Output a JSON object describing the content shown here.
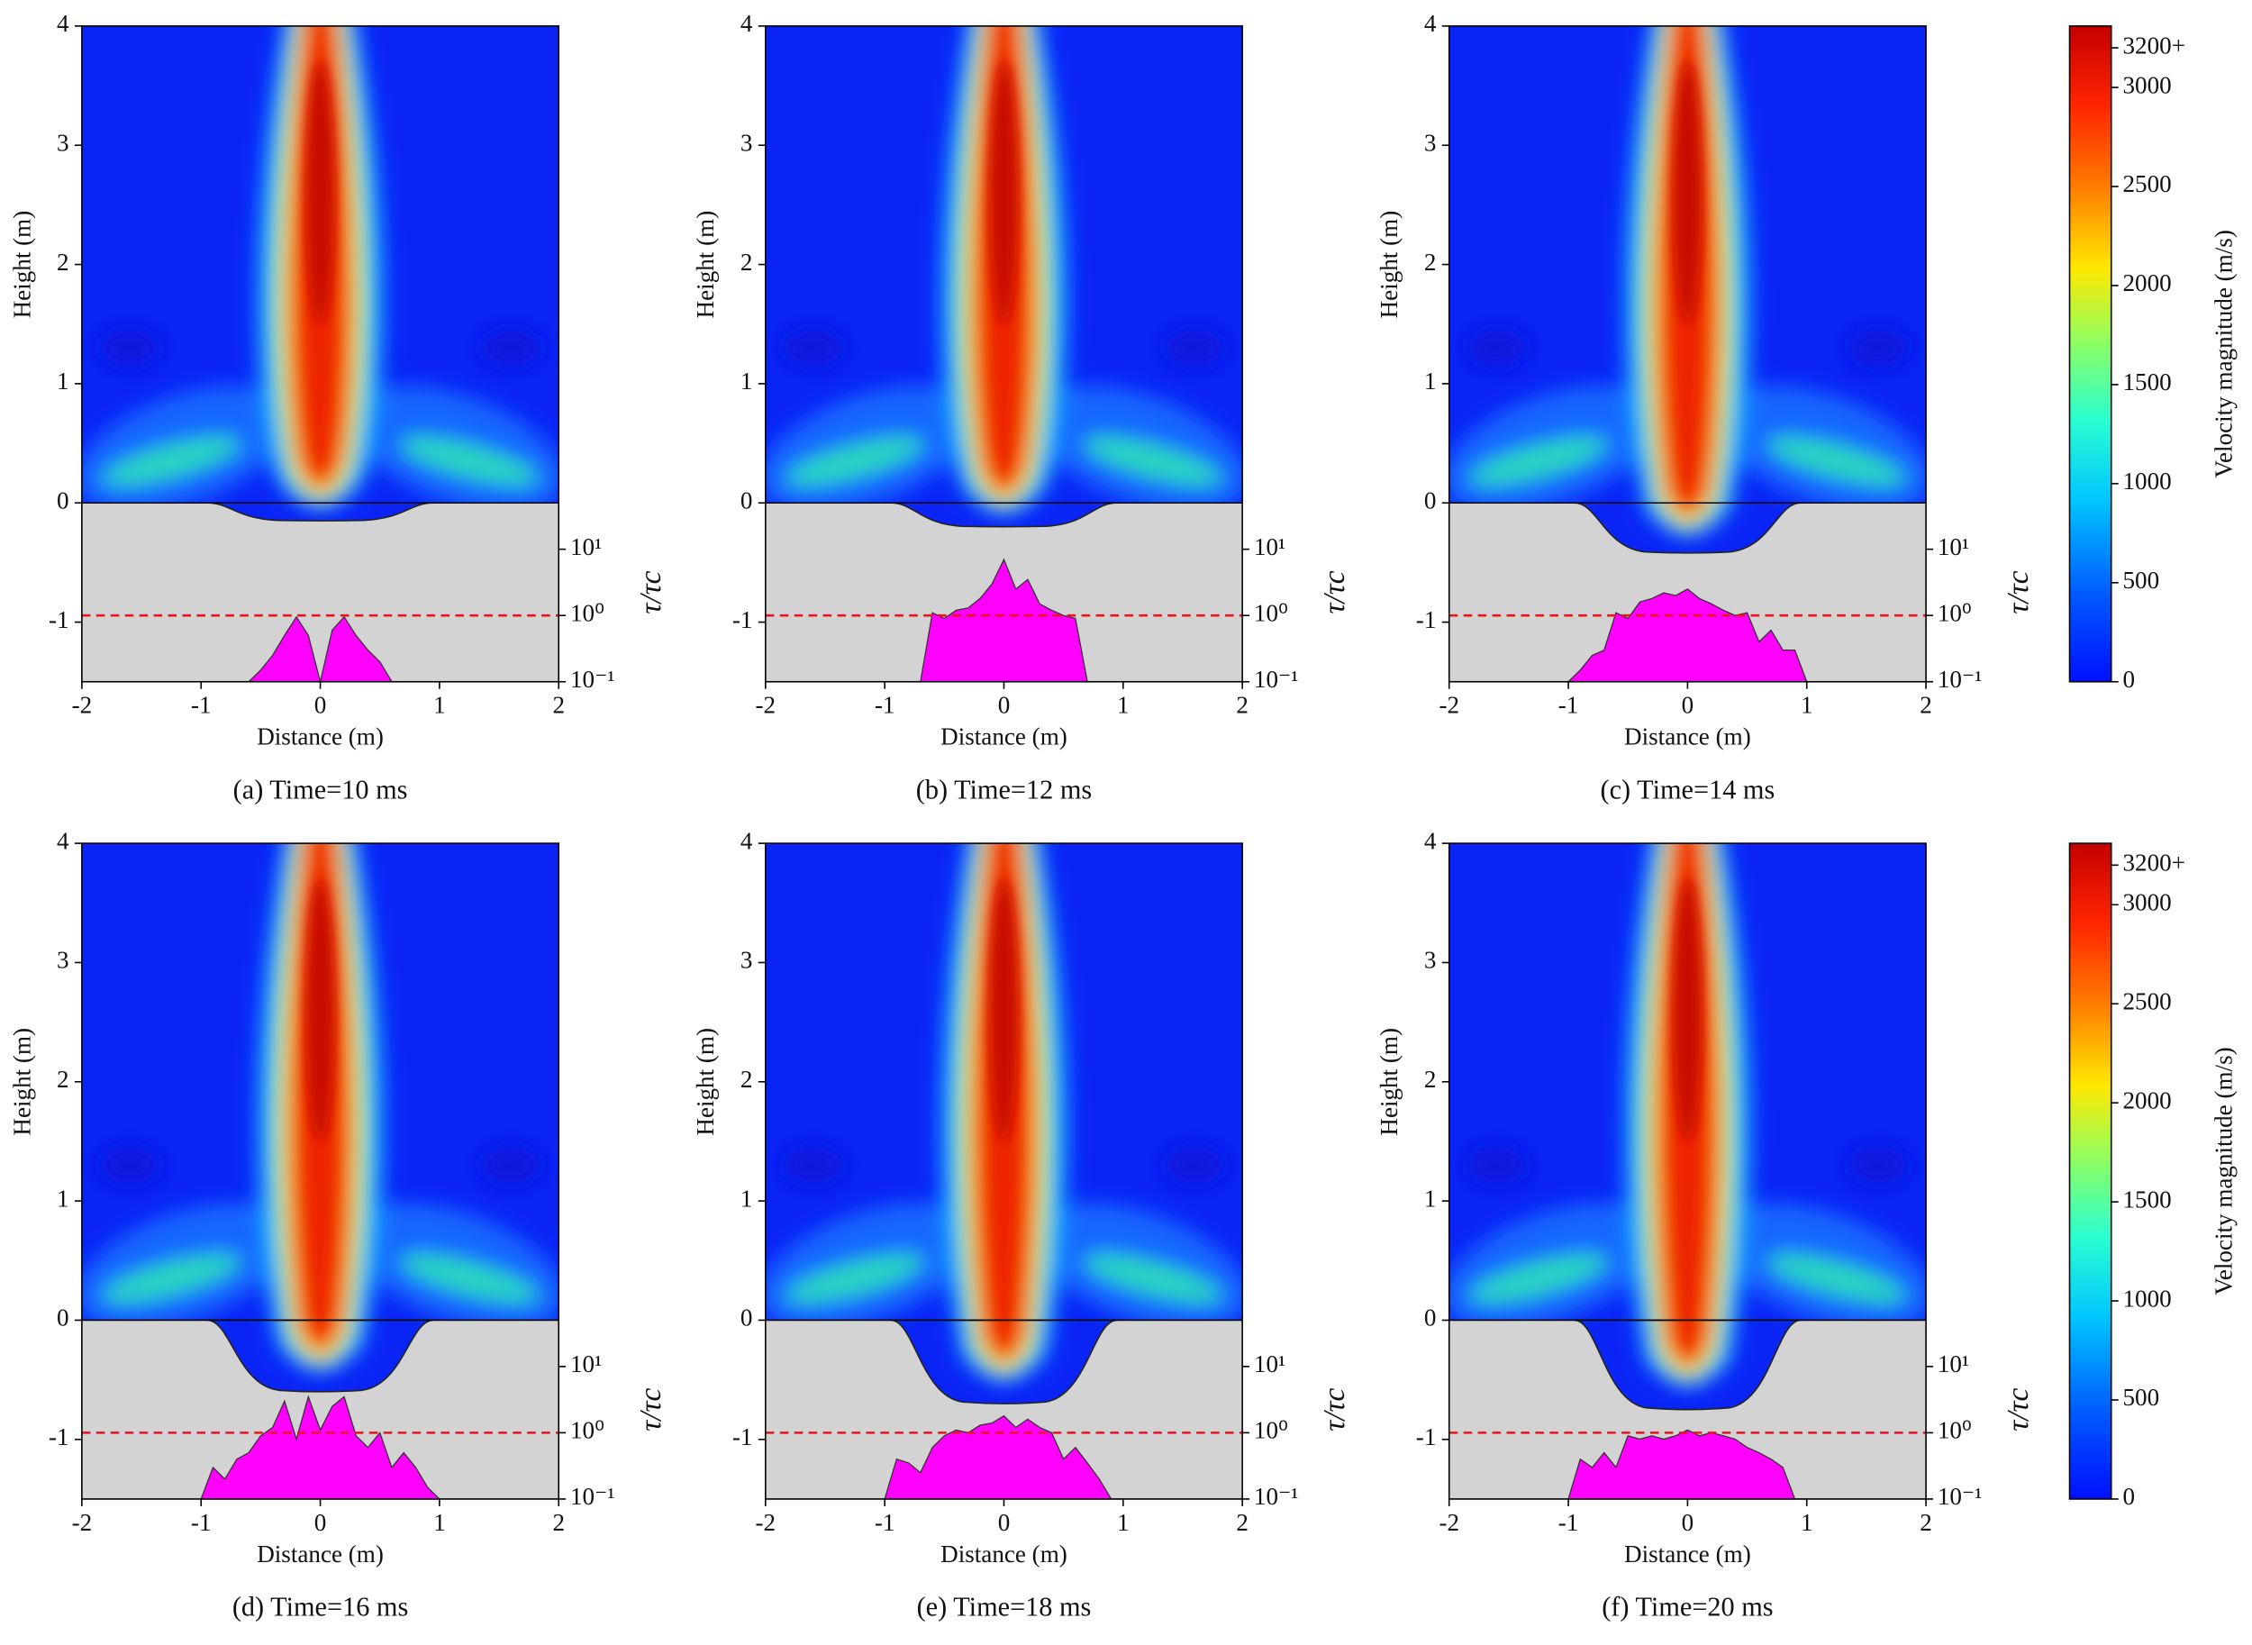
{
  "chart_data": [
    {
      "type": "contour",
      "title": "(a) Time=10 ms",
      "xlabel": "Distance (m)",
      "ylabel": "Height (m)",
      "y2label": "τ/τc",
      "xlim": [
        -2,
        2
      ],
      "ylim": [
        -1.5,
        4
      ],
      "xticks": [
        -2,
        -1,
        0,
        1,
        2
      ],
      "yticks": [
        -1,
        0,
        1,
        2,
        3,
        4
      ],
      "y2lim": [
        0.1,
        50
      ],
      "y2log": true,
      "y2ticks": [
        {
          "value": 0.1,
          "label": "10⁻¹"
        },
        {
          "value": 1,
          "label": "10⁰"
        },
        {
          "value": 10,
          "label": "10¹"
        }
      ],
      "threshold": 1,
      "threshold_color": "#e8141e",
      "crater_depth": 0.15,
      "stress": {
        "color": "#ff00ff",
        "x": [
          -1,
          -0.9,
          -0.8,
          -0.7,
          -0.6,
          -0.5,
          -0.4,
          -0.3,
          -0.2,
          -0.1,
          0,
          0.1,
          0.2,
          0.3,
          0.4,
          0.5,
          0.6,
          0.7,
          0.8,
          0.9,
          1
        ],
        "values": [
          0.1,
          0.1,
          0.1,
          0.1,
          0.1,
          0.15,
          0.25,
          0.5,
          0.95,
          0.5,
          0.1,
          0.6,
          0.95,
          0.5,
          0.3,
          0.2,
          0.1,
          0.1,
          0.1,
          0.1,
          0.1
        ]
      }
    },
    {
      "type": "contour",
      "title": "(b) Time=12 ms",
      "xlabel": "Distance (m)",
      "ylabel": "Height (m)",
      "y2label": "τ/τc",
      "xlim": [
        -2,
        2
      ],
      "ylim": [
        -1.5,
        4
      ],
      "xticks": [
        -2,
        -1,
        0,
        1,
        2
      ],
      "yticks": [
        -1,
        0,
        1,
        2,
        3,
        4
      ],
      "y2lim": [
        0.1,
        50
      ],
      "y2log": true,
      "y2ticks": [
        {
          "value": 0.1,
          "label": "10⁻¹"
        },
        {
          "value": 1,
          "label": "10⁰"
        },
        {
          "value": 10,
          "label": "10¹"
        }
      ],
      "threshold": 1,
      "threshold_color": "#e8141e",
      "crater_depth": 0.2,
      "stress": {
        "color": "#ff00ff",
        "x": [
          -1,
          -0.9,
          -0.8,
          -0.7,
          -0.6,
          -0.5,
          -0.4,
          -0.3,
          -0.2,
          -0.1,
          0,
          0.1,
          0.2,
          0.3,
          0.4,
          0.5,
          0.6,
          0.7,
          0.8,
          0.9,
          1
        ],
        "values": [
          0.1,
          0.1,
          0.1,
          0.1,
          1.1,
          0.9,
          1.2,
          1.3,
          1.8,
          3,
          7,
          2.5,
          3.5,
          1.5,
          1.2,
          1,
          0.9,
          0.1,
          0.1,
          0.1,
          0.1
        ]
      }
    },
    {
      "type": "contour",
      "title": "(c) Time=14 ms",
      "xlabel": "Distance (m)",
      "ylabel": "Height (m)",
      "y2label": "τ/τc",
      "xlim": [
        -2,
        2
      ],
      "ylim": [
        -1.5,
        4
      ],
      "xticks": [
        -2,
        -1,
        0,
        1,
        2
      ],
      "yticks": [
        -1,
        0,
        1,
        2,
        3,
        4
      ],
      "y2lim": [
        0.1,
        50
      ],
      "y2log": true,
      "y2ticks": [
        {
          "value": 0.1,
          "label": "10⁻¹"
        },
        {
          "value": 1,
          "label": "10⁰"
        },
        {
          "value": 10,
          "label": "10¹"
        }
      ],
      "threshold": 1,
      "threshold_color": "#e8141e",
      "crater_depth": 0.42,
      "stress": {
        "color": "#ff00ff",
        "x": [
          -1,
          -0.9,
          -0.8,
          -0.7,
          -0.6,
          -0.5,
          -0.4,
          -0.3,
          -0.2,
          -0.1,
          0,
          0.1,
          0.2,
          0.3,
          0.4,
          0.5,
          0.6,
          0.7,
          0.8,
          0.9,
          1
        ],
        "values": [
          0.1,
          0.15,
          0.25,
          0.3,
          1.1,
          0.9,
          1.6,
          1.8,
          2.2,
          2,
          2.5,
          1.8,
          1.5,
          1.2,
          1,
          1.1,
          0.4,
          0.6,
          0.3,
          0.3,
          0.1
        ]
      }
    },
    {
      "type": "contour",
      "title": "(d) Time=16 ms",
      "xlabel": "Distance (m)",
      "ylabel": "Height (m)",
      "y2label": "τ/τc",
      "xlim": [
        -2,
        2
      ],
      "ylim": [
        -1.5,
        4
      ],
      "xticks": [
        -2,
        -1,
        0,
        1,
        2
      ],
      "yticks": [
        -1,
        0,
        1,
        2,
        3,
        4
      ],
      "y2lim": [
        0.1,
        50
      ],
      "y2log": true,
      "y2ticks": [
        {
          "value": 0.1,
          "label": "10⁻¹"
        },
        {
          "value": 1,
          "label": "10⁰"
        },
        {
          "value": 10,
          "label": "10¹"
        }
      ],
      "threshold": 1,
      "threshold_color": "#e8141e",
      "crater_depth": 0.6,
      "stress": {
        "color": "#ff00ff",
        "x": [
          -1,
          -0.9,
          -0.8,
          -0.7,
          -0.6,
          -0.5,
          -0.4,
          -0.3,
          -0.2,
          -0.1,
          0,
          0.1,
          0.2,
          0.3,
          0.4,
          0.5,
          0.6,
          0.7,
          0.8,
          0.9,
          1
        ],
        "values": [
          0.1,
          0.3,
          0.2,
          0.4,
          0.5,
          0.9,
          1.2,
          3,
          0.8,
          3.5,
          1.1,
          2.5,
          3.5,
          0.9,
          0.6,
          1,
          0.3,
          0.5,
          0.3,
          0.15,
          0.1
        ]
      }
    },
    {
      "type": "contour",
      "title": "(e) Time=18 ms",
      "xlabel": "Distance (m)",
      "ylabel": "Height (m)",
      "y2label": "τ/τc",
      "xlim": [
        -2,
        2
      ],
      "ylim": [
        -1.5,
        4
      ],
      "xticks": [
        -2,
        -1,
        0,
        1,
        2
      ],
      "yticks": [
        -1,
        0,
        1,
        2,
        3,
        4
      ],
      "y2lim": [
        0.1,
        50
      ],
      "y2log": true,
      "y2ticks": [
        {
          "value": 0.1,
          "label": "10⁻¹"
        },
        {
          "value": 1,
          "label": "10⁰"
        },
        {
          "value": 10,
          "label": "10¹"
        }
      ],
      "threshold": 1,
      "threshold_color": "#e8141e",
      "crater_depth": 0.7,
      "stress": {
        "color": "#ff00ff",
        "x": [
          -1,
          -0.9,
          -0.8,
          -0.7,
          -0.6,
          -0.5,
          -0.4,
          -0.3,
          -0.2,
          -0.1,
          0,
          0.1,
          0.2,
          0.3,
          0.4,
          0.5,
          0.6,
          0.7,
          0.8,
          0.9,
          1
        ],
        "values": [
          0.1,
          0.4,
          0.35,
          0.25,
          0.6,
          0.9,
          1.1,
          1,
          1.3,
          1.4,
          1.8,
          1.2,
          1.6,
          1.2,
          1,
          0.4,
          0.6,
          0.35,
          0.2,
          0.1,
          0.1
        ]
      }
    },
    {
      "type": "contour",
      "title": "(f) Time=20 ms",
      "xlabel": "Distance (m)",
      "ylabel": "Height (m)",
      "y2label": "τ/τc",
      "xlim": [
        -2,
        2
      ],
      "ylim": [
        -1.5,
        4
      ],
      "xticks": [
        -2,
        -1,
        0,
        1,
        2
      ],
      "yticks": [
        -1,
        0,
        1,
        2,
        3,
        4
      ],
      "y2lim": [
        0.1,
        50
      ],
      "y2log": true,
      "y2ticks": [
        {
          "value": 0.1,
          "label": "10⁻¹"
        },
        {
          "value": 1,
          "label": "10⁰"
        },
        {
          "value": 10,
          "label": "10¹"
        }
      ],
      "threshold": 1,
      "threshold_color": "#e8141e",
      "crater_depth": 0.75,
      "stress": {
        "color": "#ff00ff",
        "x": [
          -1,
          -0.9,
          -0.8,
          -0.7,
          -0.6,
          -0.5,
          -0.4,
          -0.3,
          -0.2,
          -0.1,
          0,
          0.1,
          0.2,
          0.3,
          0.4,
          0.5,
          0.6,
          0.7,
          0.8,
          0.9,
          1
        ],
        "values": [
          0.1,
          0.4,
          0.3,
          0.5,
          0.3,
          0.9,
          0.8,
          0.9,
          0.8,
          0.9,
          1.1,
          0.9,
          1,
          0.9,
          0.8,
          0.6,
          0.5,
          0.4,
          0.3,
          0.1,
          0.1
        ]
      }
    }
  ],
  "colorbar": {
    "label": "Velocity magnitude (m/s)",
    "clim": [
      0,
      3310
    ],
    "colormap": "jet",
    "ticks": [
      0,
      500,
      1000,
      1500,
      2000,
      2500,
      3000,
      {
        "value": 3200,
        "label": "3200+"
      }
    ]
  }
}
